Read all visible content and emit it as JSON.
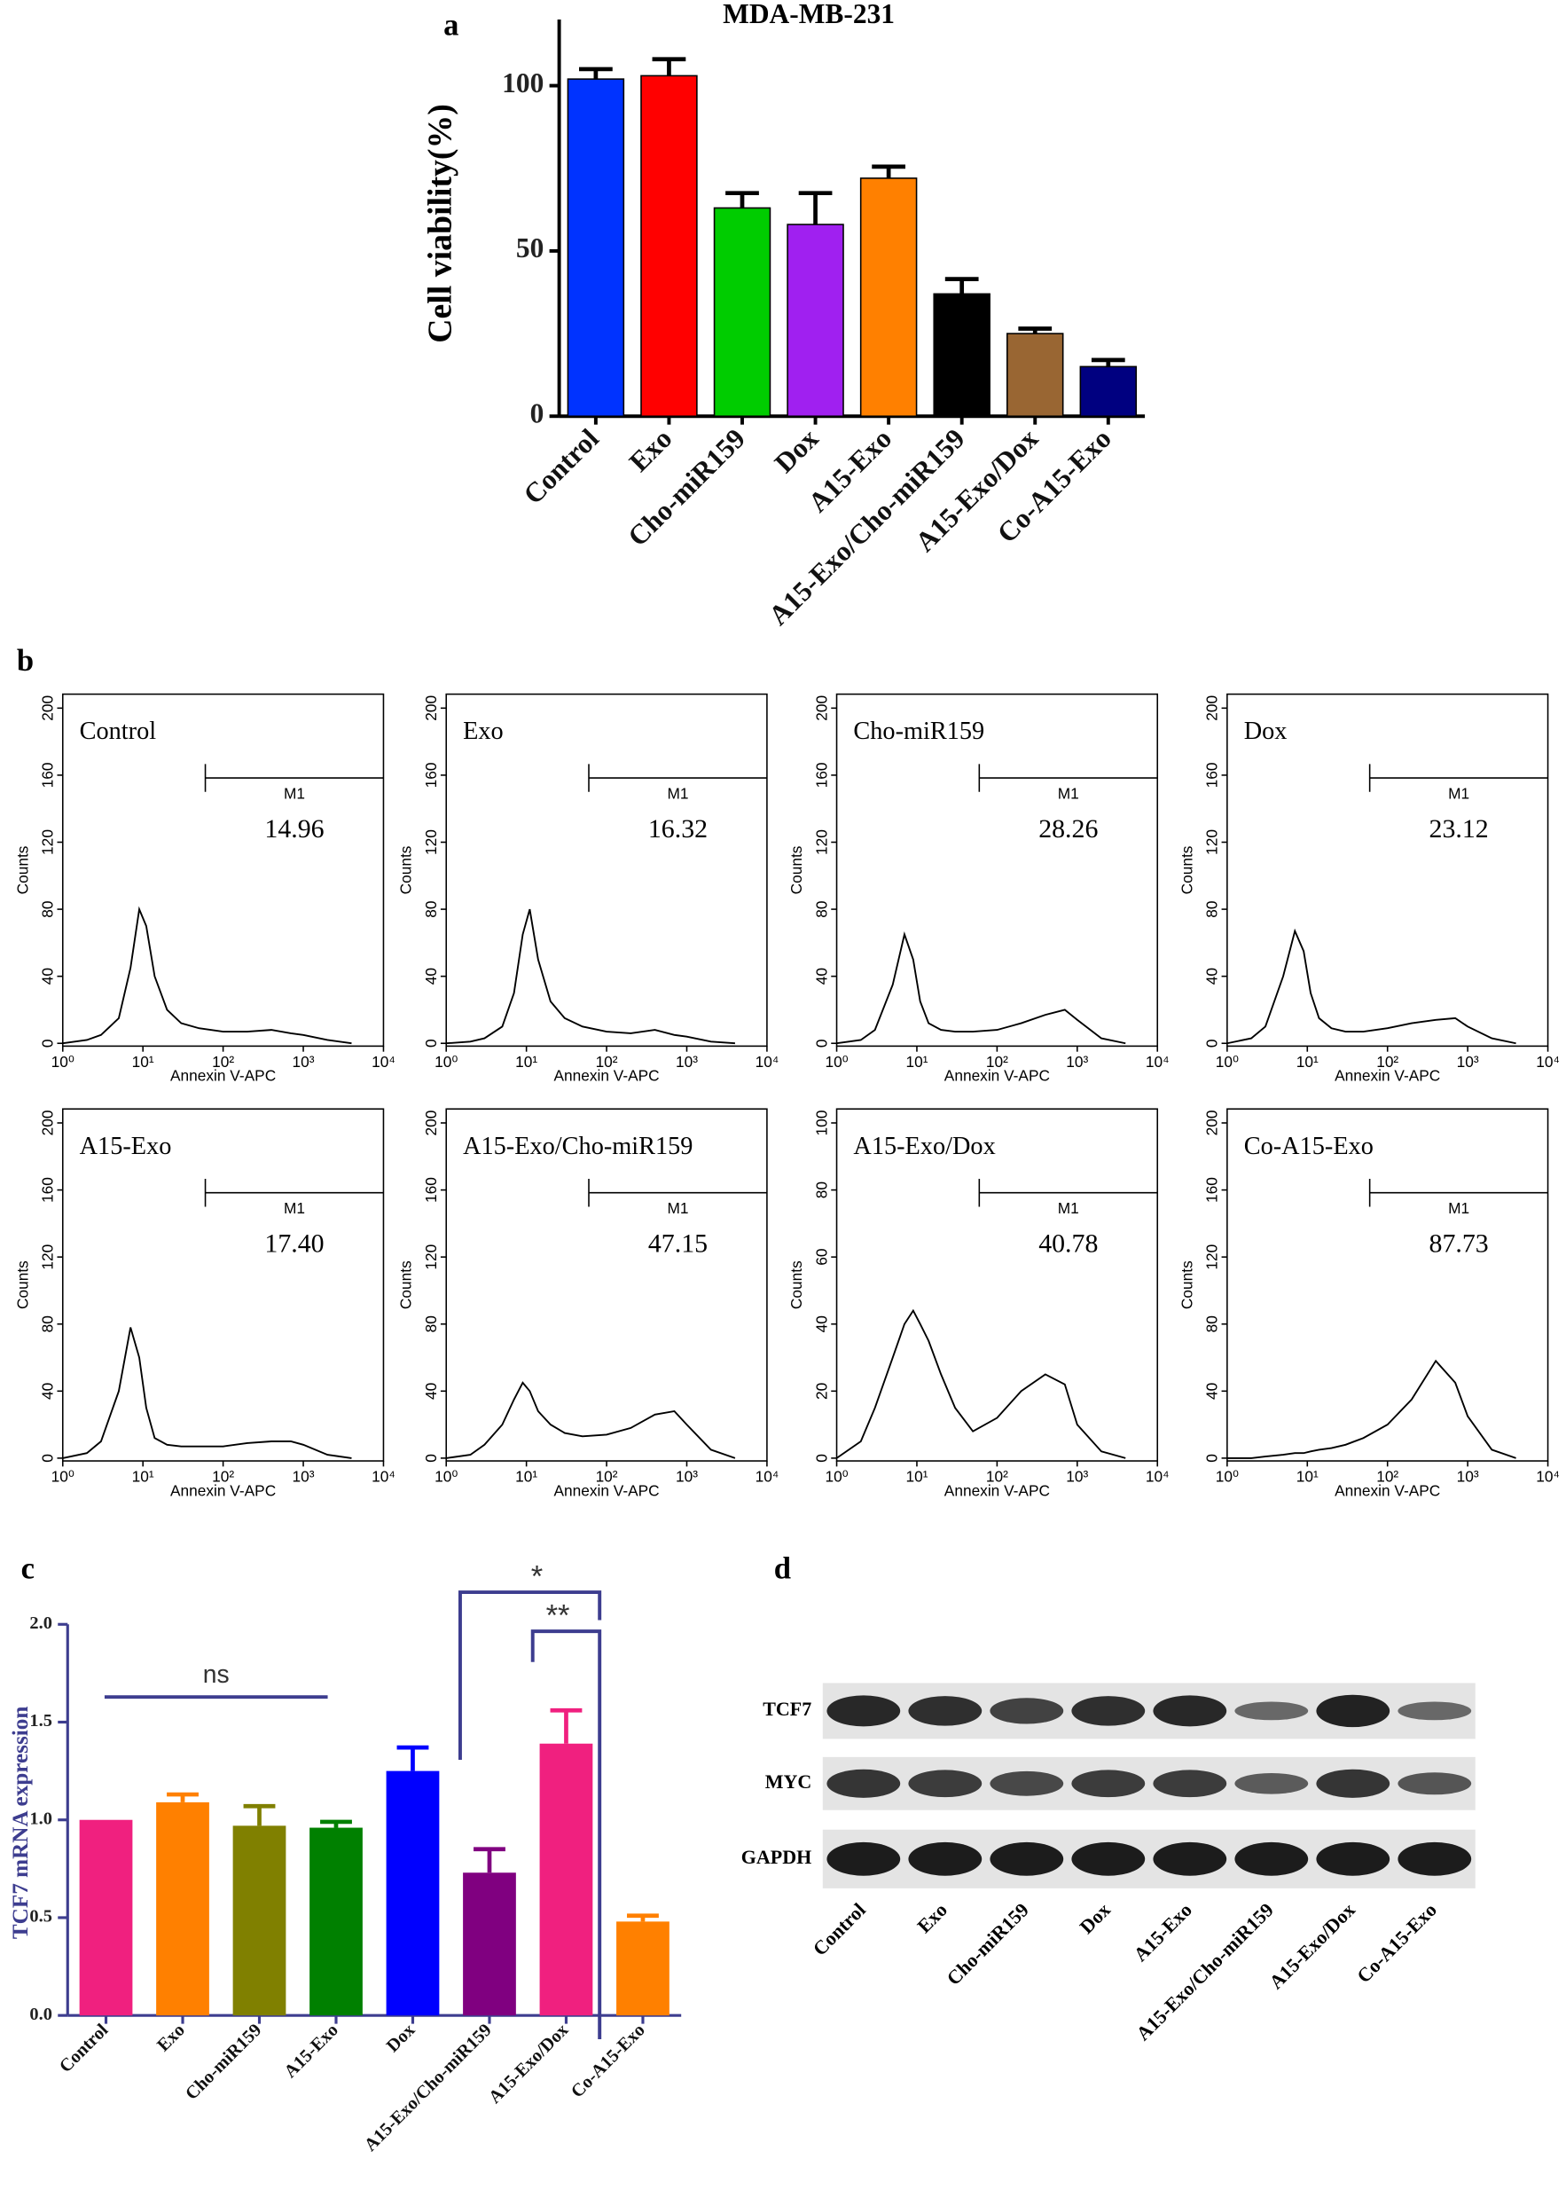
{
  "chart_data": [
    {
      "type": "bar",
      "panel": "a",
      "title": "MDA-MB-231",
      "ylabel": "Cell viability(%)",
      "categories": [
        "Control",
        "Exo",
        "Cho-miR159",
        "Dox",
        "A15-Exo",
        "A15-Exo/Cho-miR159",
        "A15-Exo/Dox",
        "Co-A15-Exo"
      ],
      "values": [
        102,
        103,
        63,
        58,
        72,
        37,
        25,
        15
      ],
      "errors": [
        3,
        5,
        4.5,
        9.5,
        3.5,
        4.5,
        1.5,
        2
      ],
      "colors": [
        "#0033ff",
        "#ff0000",
        "#00cc00",
        "#a020f0",
        "#ff8000",
        "#000000",
        "#996633",
        "#000080"
      ],
      "ylim": [
        0,
        120
      ],
      "yticks": [
        0,
        50,
        100
      ]
    },
    {
      "type": "line",
      "panel": "b",
      "title": "Control",
      "xscale": "log",
      "xlabel": "Annexin V-APC",
      "ylabel": "Counts",
      "marker": "M1",
      "gate": [
        60,
        10000
      ],
      "annotation": "14.96",
      "x": [
        1,
        2,
        3,
        5,
        7,
        9,
        11,
        14,
        20,
        30,
        50,
        100,
        200,
        400,
        700,
        1000,
        2000,
        4000
      ],
      "values": [
        0,
        2,
        5,
        15,
        45,
        80,
        70,
        40,
        20,
        12,
        9,
        7,
        7,
        8,
        6,
        5,
        2,
        0
      ],
      "xlim": [
        1,
        10000
      ],
      "xticks": [
        {
          "value": 1,
          "label": "10⁰"
        },
        {
          "value": 10,
          "label": "10¹"
        },
        {
          "value": 100,
          "label": "10²"
        },
        {
          "value": 1000,
          "label": "10³"
        },
        {
          "value": 10000,
          "label": "10⁴"
        }
      ],
      "ylim": [
        0,
        200
      ],
      "yticks": [
        0,
        40,
        80,
        120,
        160,
        200
      ]
    },
    {
      "type": "line",
      "title": "Exo",
      "xscale": "log",
      "xlabel": "Annexin V-APC",
      "ylabel": "Counts",
      "marker": "M1",
      "gate": [
        60,
        10000
      ],
      "annotation": "16.32",
      "x": [
        1,
        2,
        3,
        5,
        7,
        9,
        11,
        14,
        20,
        30,
        50,
        100,
        200,
        400,
        700,
        1000,
        2000,
        4000
      ],
      "values": [
        0,
        1,
        3,
        10,
        30,
        65,
        80,
        50,
        25,
        15,
        10,
        7,
        6,
        8,
        5,
        4,
        1,
        0
      ],
      "xlim": [
        1,
        10000
      ],
      "xticks": [
        {
          "value": 1,
          "label": "10⁰"
        },
        {
          "value": 10,
          "label": "10¹"
        },
        {
          "value": 100,
          "label": "10²"
        },
        {
          "value": 1000,
          "label": "10³"
        },
        {
          "value": 10000,
          "label": "10⁴"
        }
      ],
      "ylim": [
        0,
        200
      ],
      "yticks": [
        0,
        40,
        80,
        120,
        160,
        200
      ]
    },
    {
      "type": "line",
      "title": "Cho-miR159",
      "xscale": "log",
      "xlabel": "Annexin V-APC",
      "ylabel": "Counts",
      "marker": "M1",
      "gate": [
        60,
        10000
      ],
      "annotation": "28.26",
      "x": [
        1,
        2,
        3,
        5,
        7,
        9,
        11,
        14,
        20,
        30,
        50,
        100,
        200,
        400,
        700,
        1000,
        2000,
        4000
      ],
      "values": [
        0,
        2,
        8,
        35,
        65,
        50,
        25,
        12,
        8,
        7,
        7,
        8,
        12,
        17,
        20,
        14,
        3,
        0
      ],
      "xlim": [
        1,
        10000
      ],
      "xticks": [
        {
          "value": 1,
          "label": "10⁰"
        },
        {
          "value": 10,
          "label": "10¹"
        },
        {
          "value": 100,
          "label": "10²"
        },
        {
          "value": 1000,
          "label": "10³"
        },
        {
          "value": 10000,
          "label": "10⁴"
        }
      ],
      "ylim": [
        0,
        200
      ],
      "yticks": [
        0,
        40,
        80,
        120,
        160,
        200
      ]
    },
    {
      "type": "line",
      "title": "Dox",
      "xscale": "log",
      "xlabel": "Annexin V-APC",
      "ylabel": "Counts",
      "marker": "M1",
      "gate": [
        60,
        10000
      ],
      "annotation": "23.12",
      "x": [
        1,
        2,
        3,
        5,
        7,
        9,
        11,
        14,
        20,
        30,
        50,
        100,
        200,
        400,
        700,
        1000,
        2000,
        4000
      ],
      "values": [
        0,
        3,
        10,
        40,
        67,
        55,
        30,
        15,
        9,
        7,
        7,
        9,
        12,
        14,
        15,
        10,
        3,
        0
      ],
      "xlim": [
        1,
        10000
      ],
      "xticks": [
        {
          "value": 1,
          "label": "10⁰"
        },
        {
          "value": 10,
          "label": "10¹"
        },
        {
          "value": 100,
          "label": "10²"
        },
        {
          "value": 1000,
          "label": "10³"
        },
        {
          "value": 10000,
          "label": "10⁴"
        }
      ],
      "ylim": [
        0,
        200
      ],
      "yticks": [
        0,
        40,
        80,
        120,
        160,
        200
      ]
    },
    {
      "type": "line",
      "title": "A15-Exo",
      "xscale": "log",
      "xlabel": "Annexin V-APC",
      "ylabel": "Counts",
      "marker": "M1",
      "gate": [
        60,
        10000
      ],
      "annotation": "17.40",
      "x": [
        1,
        2,
        3,
        5,
        7,
        9,
        11,
        14,
        20,
        30,
        50,
        100,
        200,
        400,
        700,
        1000,
        2000,
        4000
      ],
      "values": [
        0,
        3,
        10,
        40,
        78,
        60,
        30,
        12,
        8,
        7,
        7,
        7,
        9,
        10,
        10,
        8,
        2,
        0
      ],
      "xlim": [
        1,
        10000
      ],
      "xticks": [
        {
          "value": 1,
          "label": "10⁰"
        },
        {
          "value": 10,
          "label": "10¹"
        },
        {
          "value": 100,
          "label": "10²"
        },
        {
          "value": 1000,
          "label": "10³"
        },
        {
          "value": 10000,
          "label": "10⁴"
        }
      ],
      "ylim": [
        0,
        200
      ],
      "yticks": [
        0,
        40,
        80,
        120,
        160,
        200
      ]
    },
    {
      "type": "line",
      "title": "A15-Exo/Cho-miR159",
      "xscale": "log",
      "xlabel": "Annexin V-APC",
      "ylabel": "Counts",
      "marker": "M1",
      "gate": [
        60,
        10000
      ],
      "annotation": "47.15",
      "x": [
        1,
        2,
        3,
        5,
        7,
        9,
        11,
        14,
        20,
        30,
        50,
        100,
        200,
        400,
        700,
        1000,
        2000,
        4000
      ],
      "values": [
        0,
        2,
        8,
        20,
        35,
        45,
        40,
        28,
        20,
        15,
        13,
        14,
        18,
        26,
        28,
        20,
        5,
        0
      ],
      "xlim": [
        1,
        10000
      ],
      "xticks": [
        {
          "value": 1,
          "label": "10⁰"
        },
        {
          "value": 10,
          "label": "10¹"
        },
        {
          "value": 100,
          "label": "10²"
        },
        {
          "value": 1000,
          "label": "10³"
        },
        {
          "value": 10000,
          "label": "10⁴"
        }
      ],
      "ylim": [
        0,
        200
      ],
      "yticks": [
        0,
        40,
        80,
        120,
        160,
        200
      ]
    },
    {
      "type": "line",
      "title": "A15-Exo/Dox",
      "xscale": "log",
      "xlabel": "Annexin V-APC",
      "ylabel": "Counts",
      "marker": "M1",
      "gate": [
        60,
        10000
      ],
      "annotation": "40.78",
      "x": [
        1,
        2,
        3,
        5,
        7,
        9,
        11,
        14,
        20,
        30,
        50,
        100,
        200,
        400,
        700,
        1000,
        2000,
        4000
      ],
      "values": [
        0,
        5,
        15,
        30,
        40,
        44,
        40,
        35,
        25,
        15,
        8,
        12,
        20,
        25,
        22,
        10,
        2,
        0
      ],
      "xlim": [
        1,
        10000
      ],
      "xticks": [
        {
          "value": 1,
          "label": "10⁰"
        },
        {
          "value": 10,
          "label": "10¹"
        },
        {
          "value": 100,
          "label": "10²"
        },
        {
          "value": 1000,
          "label": "10³"
        },
        {
          "value": 10000,
          "label": "10⁴"
        }
      ],
      "ylim": [
        0,
        100
      ],
      "yticks": [
        0,
        20,
        40,
        60,
        80,
        100
      ]
    },
    {
      "type": "line",
      "title": "Co-A15-Exo",
      "xscale": "log",
      "xlabel": "Annexin V-APC",
      "ylabel": "Counts",
      "marker": "M1",
      "gate": [
        60,
        10000
      ],
      "annotation": "87.73",
      "x": [
        1,
        2,
        3,
        5,
        7,
        9,
        11,
        14,
        20,
        30,
        50,
        100,
        200,
        400,
        700,
        1000,
        2000,
        4000
      ],
      "values": [
        0,
        0,
        1,
        2,
        3,
        3,
        4,
        5,
        6,
        8,
        12,
        20,
        35,
        58,
        45,
        25,
        5,
        0
      ],
      "xlim": [
        1,
        10000
      ],
      "xticks": [
        {
          "value": 1,
          "label": "10⁰"
        },
        {
          "value": 10,
          "label": "10¹"
        },
        {
          "value": 100,
          "label": "10²"
        },
        {
          "value": 1000,
          "label": "10³"
        },
        {
          "value": 10000,
          "label": "10⁴"
        }
      ],
      "ylim": [
        0,
        200
      ],
      "yticks": [
        0,
        40,
        80,
        120,
        160,
        200
      ]
    },
    {
      "type": "bar",
      "panel": "c",
      "ylabel": "TCF7 mRNA expression",
      "categories": [
        "Control",
        "Exo",
        "Cho-miR159",
        "A15-Exo",
        "Dox",
        "A15-Exo/Cho-miR159",
        "A15-Exo/Dox",
        "Co-A15-Exo"
      ],
      "values": [
        1.0,
        1.09,
        0.97,
        0.96,
        1.25,
        0.73,
        1.39,
        0.48
      ],
      "errors": [
        0,
        0.04,
        0.1,
        0.03,
        0.12,
        0.12,
        0.17,
        0.03
      ],
      "colors": [
        "#f0207f",
        "#ff8000",
        "#808000",
        "#008000",
        "#0000ff",
        "#800080",
        "#f0207f",
        "#ff8000"
      ],
      "annotations": [
        "ns",
        "*",
        "**"
      ],
      "ylim": [
        0,
        2
      ],
      "yticks": [
        {
          "value": 0,
          "label": "0.0"
        },
        0.5,
        {
          "value": 1,
          "label": "1.0"
        },
        1.5,
        {
          "value": 2,
          "label": "2.0"
        }
      ]
    },
    {
      "type": "blot",
      "panel": "d",
      "categories": [
        "Control",
        "Exo",
        "Cho-miR159",
        "Dox",
        "A15-Exo",
        "A15-Exo/Cho-miR159",
        "A15-Exo/Dox",
        "Co-A15-Exo"
      ],
      "series": [
        {
          "name": "TCF7",
          "values": [
            0.9,
            0.85,
            0.7,
            0.85,
            0.9,
            0.4,
            0.95,
            0.4
          ]
        },
        {
          "name": "MYC",
          "values": [
            0.8,
            0.75,
            0.65,
            0.75,
            0.75,
            0.5,
            0.8,
            0.55
          ]
        },
        {
          "name": "GAPDH",
          "values": [
            1,
            1,
            1,
            1,
            1,
            1,
            1,
            1
          ]
        }
      ]
    }
  ]
}
